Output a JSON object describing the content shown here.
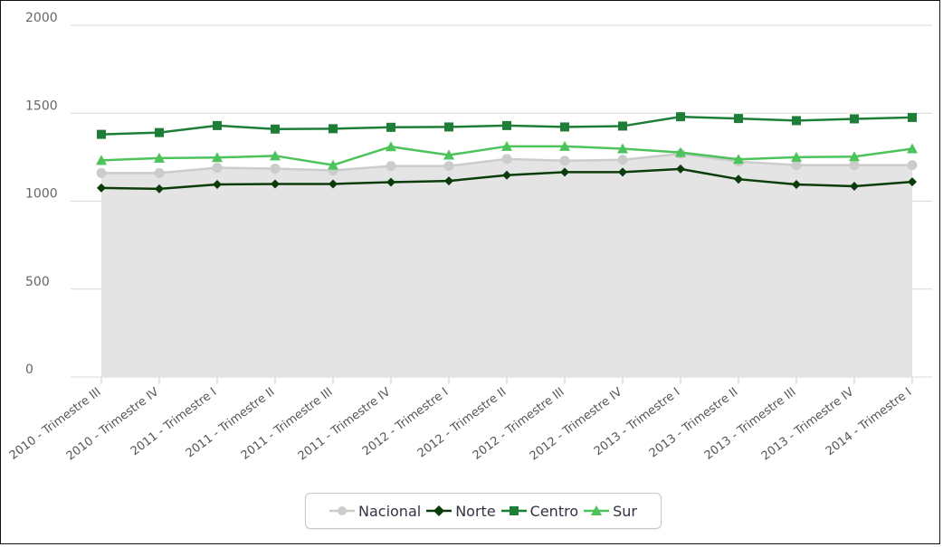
{
  "chart_data": {
    "type": "line",
    "x": [
      "2010 - Trimestre III",
      "2010 - Trimestre IV",
      "2011 - Trimestre I",
      "2011 - Trimestre II",
      "2011 - Trimestre III",
      "2011 - Trimestre IV",
      "2012 - Trimestre I",
      "2012 - Trimestre II",
      "2012 - Trimestre III",
      "2012 - Trimestre IV",
      "2013 - Trimestre I",
      "2013 - Trimestre II",
      "2013 - Trimestre III",
      "2013 - Trimestre IV",
      "2014 - Trimestre I"
    ],
    "series": [
      {
        "name": "Nacional",
        "color": "#cccccc",
        "marker": "circle",
        "area": true,
        "values": [
          1160,
          1160,
          1190,
          1185,
          1175,
          1200,
          1200,
          1240,
          1230,
          1235,
          1270,
          1225,
          1205,
          1205,
          1205
        ]
      },
      {
        "name": "Norte",
        "color": "#0b3d0b",
        "marker": "diamond",
        "area": false,
        "values": [
          1075,
          1070,
          1095,
          1098,
          1098,
          1108,
          1115,
          1148,
          1165,
          1165,
          1183,
          1125,
          1095,
          1085,
          1110
        ]
      },
      {
        "name": "Centro",
        "color": "#1e7d37",
        "marker": "square",
        "area": false,
        "values": [
          1380,
          1390,
          1430,
          1410,
          1412,
          1420,
          1422,
          1430,
          1422,
          1427,
          1480,
          1470,
          1458,
          1468,
          1476
        ]
      },
      {
        "name": "Sur",
        "color": "#4cc35b",
        "marker": "triangle",
        "area": false,
        "values": [
          1232,
          1245,
          1248,
          1258,
          1205,
          1310,
          1262,
          1312,
          1312,
          1298,
          1277,
          1238,
          1250,
          1253,
          1298
        ]
      }
    ],
    "yticks": [
      0,
      500,
      1000,
      1500,
      2000
    ],
    "ylim": [
      0,
      2000
    ],
    "grid": true,
    "legend_position": "bottom-center",
    "area_fill_color": "#e4e4e4"
  },
  "legend": {
    "items": [
      {
        "label": "Nacional"
      },
      {
        "label": "Norte"
      },
      {
        "label": "Centro"
      },
      {
        "label": "Sur"
      }
    ]
  }
}
